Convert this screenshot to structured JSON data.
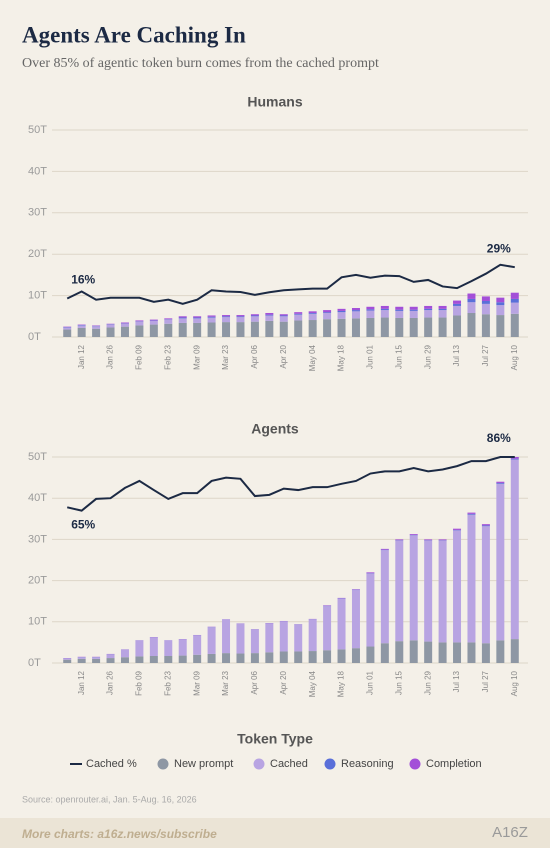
{
  "title": "Agents Are Caching In",
  "subtitle": "Over 85% of agentic token burn comes from the cached prompt",
  "legend_title": "Token Type",
  "source": "Source: openrouter.ai, Jan. 5-Aug. 16, 2026",
  "footer": "More charts: a16z.news/subscribe",
  "logo": "A16Z",
  "chart_data": [
    {
      "type": "bar",
      "stacked": true,
      "title": "Humans",
      "categories": [
        null,
        "Jan 12",
        null,
        "Jan 26",
        null,
        "Feb 09",
        null,
        "Feb 23",
        null,
        "Mar 09",
        null,
        "Mar 23",
        null,
        "Apr 06",
        null,
        "Apr 20",
        null,
        "May 04",
        null,
        "May 18",
        null,
        "Jun 01",
        null,
        "Jun 15",
        null,
        "Jun 29",
        null,
        "Jul 13",
        null,
        "Jul 27",
        null,
        "Aug 10"
      ],
      "ylim": [
        0,
        50
      ],
      "yticks": [
        {
          "value": 0,
          "label": "0T"
        },
        {
          "value": 10,
          "label": "10T"
        },
        {
          "value": 20,
          "label": "20T"
        },
        {
          "value": 30,
          "label": "30T"
        },
        {
          "value": 40,
          "label": "40T"
        },
        {
          "value": 50,
          "label": "50T"
        }
      ],
      "y2lim": [
        0,
        86
      ],
      "grid": true,
      "series": [
        {
          "name": "Cached %",
          "type": "line",
          "axis": "y2",
          "color": "#1c2a44",
          "values": [
            16,
            18.9,
            15.5,
            16.3,
            16.3,
            16.3,
            14.6,
            15.5,
            13.8,
            15.5,
            19.4,
            18.9,
            18.7,
            17.5,
            18.6,
            19.4,
            19.8,
            20.1,
            20.1,
            24.8,
            25.8,
            24.6,
            25.5,
            25.3,
            22.9,
            23.7,
            21,
            20.3,
            23.2,
            26.3,
            30,
            29
          ],
          "value_labels": [
            "16%",
            null,
            null,
            null,
            null,
            null,
            null,
            null,
            null,
            null,
            null,
            null,
            null,
            null,
            null,
            null,
            null,
            null,
            null,
            null,
            null,
            null,
            null,
            null,
            null,
            null,
            null,
            null,
            null,
            null,
            null,
            "29%"
          ]
        },
        {
          "name": "New prompt",
          "color": "#8e97a4",
          "values": [
            1.8,
            2.2,
            2.0,
            2.3,
            2.5,
            2.8,
            3.0,
            3.2,
            3.4,
            3.4,
            3.5,
            3.6,
            3.6,
            3.7,
            3.9,
            3.7,
            4.0,
            4.1,
            4.3,
            4.4,
            4.5,
            4.6,
            4.7,
            4.6,
            4.6,
            4.7,
            4.7,
            5.2,
            5.8,
            5.5,
            5.3,
            5.6
          ]
        },
        {
          "name": "Cached",
          "color": "#b8a4e2",
          "values": [
            0.5,
            0.6,
            0.6,
            0.7,
            0.7,
            0.9,
            0.9,
            1.0,
            1.1,
            1.1,
            1.2,
            1.2,
            1.2,
            1.3,
            1.3,
            1.3,
            1.4,
            1.5,
            1.5,
            1.6,
            1.7,
            1.8,
            1.8,
            1.7,
            1.7,
            1.8,
            1.8,
            2.3,
            2.6,
            2.5,
            2.4,
            2.7
          ]
        },
        {
          "name": "Reasoning",
          "color": "#5a6fd9",
          "values": [
            0.1,
            0.1,
            0.1,
            0.1,
            0.1,
            0.1,
            0.1,
            0.1,
            0.2,
            0.2,
            0.2,
            0.2,
            0.2,
            0.2,
            0.2,
            0.2,
            0.2,
            0.2,
            0.2,
            0.3,
            0.3,
            0.3,
            0.3,
            0.3,
            0.3,
            0.3,
            0.3,
            0.5,
            0.8,
            0.7,
            0.7,
            0.9
          ]
        },
        {
          "name": "Completion",
          "color": "#a34fd8",
          "values": [
            0.1,
            0.1,
            0.1,
            0.1,
            0.2,
            0.2,
            0.2,
            0.2,
            0.3,
            0.3,
            0.3,
            0.3,
            0.3,
            0.3,
            0.4,
            0.3,
            0.4,
            0.4,
            0.5,
            0.5,
            0.5,
            0.6,
            0.7,
            0.7,
            0.7,
            0.7,
            0.7,
            0.8,
            1.3,
            1.1,
            1.1,
            1.5
          ]
        }
      ]
    },
    {
      "type": "bar",
      "stacked": true,
      "title": "Agents",
      "categories": [
        null,
        "Jan 12",
        null,
        "Jan 26",
        null,
        "Feb 09",
        null,
        "Feb 23",
        null,
        "Mar 09",
        null,
        "Mar 23",
        null,
        "Apr 06",
        null,
        "Apr 20",
        null,
        "May 04",
        null,
        "May 18",
        null,
        "Jun 01",
        null,
        "Jun 15",
        null,
        "Jun 29",
        null,
        "Jul 13",
        null,
        "Jul 27",
        null,
        "Aug 10"
      ],
      "ylim": [
        0,
        50
      ],
      "yticks": [
        {
          "value": 0,
          "label": "0T"
        },
        {
          "value": 10,
          "label": "10T"
        },
        {
          "value": 20,
          "label": "20T"
        },
        {
          "value": 30,
          "label": "30T"
        },
        {
          "value": 40,
          "label": "40T"
        },
        {
          "value": 50,
          "label": "50T"
        }
      ],
      "y2lim": [
        0,
        86
      ],
      "grid": true,
      "series": [
        {
          "name": "Cached %",
          "type": "line",
          "axis": "y2",
          "color": "#1c2a44",
          "values": [
            65,
            63.6,
            68.5,
            68.8,
            73.1,
            76,
            72.2,
            68.5,
            70.9,
            70.9,
            76,
            77.4,
            76.9,
            69.7,
            70.2,
            72.8,
            72.2,
            73.4,
            73.4,
            74.8,
            76,
            79.1,
            80,
            80,
            81.4,
            80,
            80.8,
            82.2,
            84.3,
            84.3,
            86,
            86
          ],
          "value_labels": [
            "65%",
            null,
            null,
            null,
            null,
            null,
            null,
            null,
            null,
            null,
            null,
            null,
            null,
            null,
            null,
            null,
            null,
            null,
            null,
            null,
            null,
            null,
            null,
            null,
            null,
            null,
            null,
            null,
            null,
            null,
            null,
            "86%"
          ]
        },
        {
          "name": "New prompt",
          "color": "#8e97a4",
          "values": [
            0.8,
            1.0,
            1.0,
            1.2,
            1.4,
            1.6,
            1.7,
            1.7,
            1.8,
            2.0,
            2.2,
            2.4,
            2.3,
            2.4,
            2.6,
            2.8,
            2.8,
            2.9,
            3.1,
            3.3,
            3.6,
            4.0,
            4.8,
            5.3,
            5.5,
            5.2,
            5.0,
            5.0,
            5.0,
            4.8,
            5.5,
            5.8
          ]
        },
        {
          "name": "Cached",
          "color": "#b8a4e2",
          "values": [
            0.3,
            0.4,
            0.4,
            0.9,
            1.8,
            3.8,
            4.5,
            3.7,
            3.9,
            4.7,
            6.5,
            8.1,
            7.2,
            5.7,
            7.0,
            7.3,
            6.5,
            7.7,
            10.7,
            12.3,
            14.1,
            17.7,
            22.6,
            24.4,
            25.5,
            24.5,
            24.7,
            27.2,
            31.0,
            28.4,
            38.0,
            43.6
          ]
        },
        {
          "name": "Reasoning",
          "color": "#5a6fd9",
          "values": [
            0.05,
            0.05,
            0.05,
            0.05,
            0.05,
            0.05,
            0.05,
            0.05,
            0.05,
            0.05,
            0.05,
            0.05,
            0.05,
            0.05,
            0.05,
            0.05,
            0.05,
            0.05,
            0.1,
            0.1,
            0.1,
            0.1,
            0.1,
            0.1,
            0.1,
            0.1,
            0.1,
            0.1,
            0.2,
            0.2,
            0.2,
            0.2
          ]
        },
        {
          "name": "Completion",
          "color": "#a34fd8",
          "values": [
            0.05,
            0.05,
            0.05,
            0.05,
            0.05,
            0.05,
            0.05,
            0.05,
            0.05,
            0.05,
            0.05,
            0.05,
            0.05,
            0.05,
            0.05,
            0.05,
            0.05,
            0.05,
            0.1,
            0.1,
            0.1,
            0.2,
            0.2,
            0.2,
            0.2,
            0.2,
            0.2,
            0.3,
            0.3,
            0.3,
            0.3,
            0.4
          ]
        }
      ]
    }
  ]
}
